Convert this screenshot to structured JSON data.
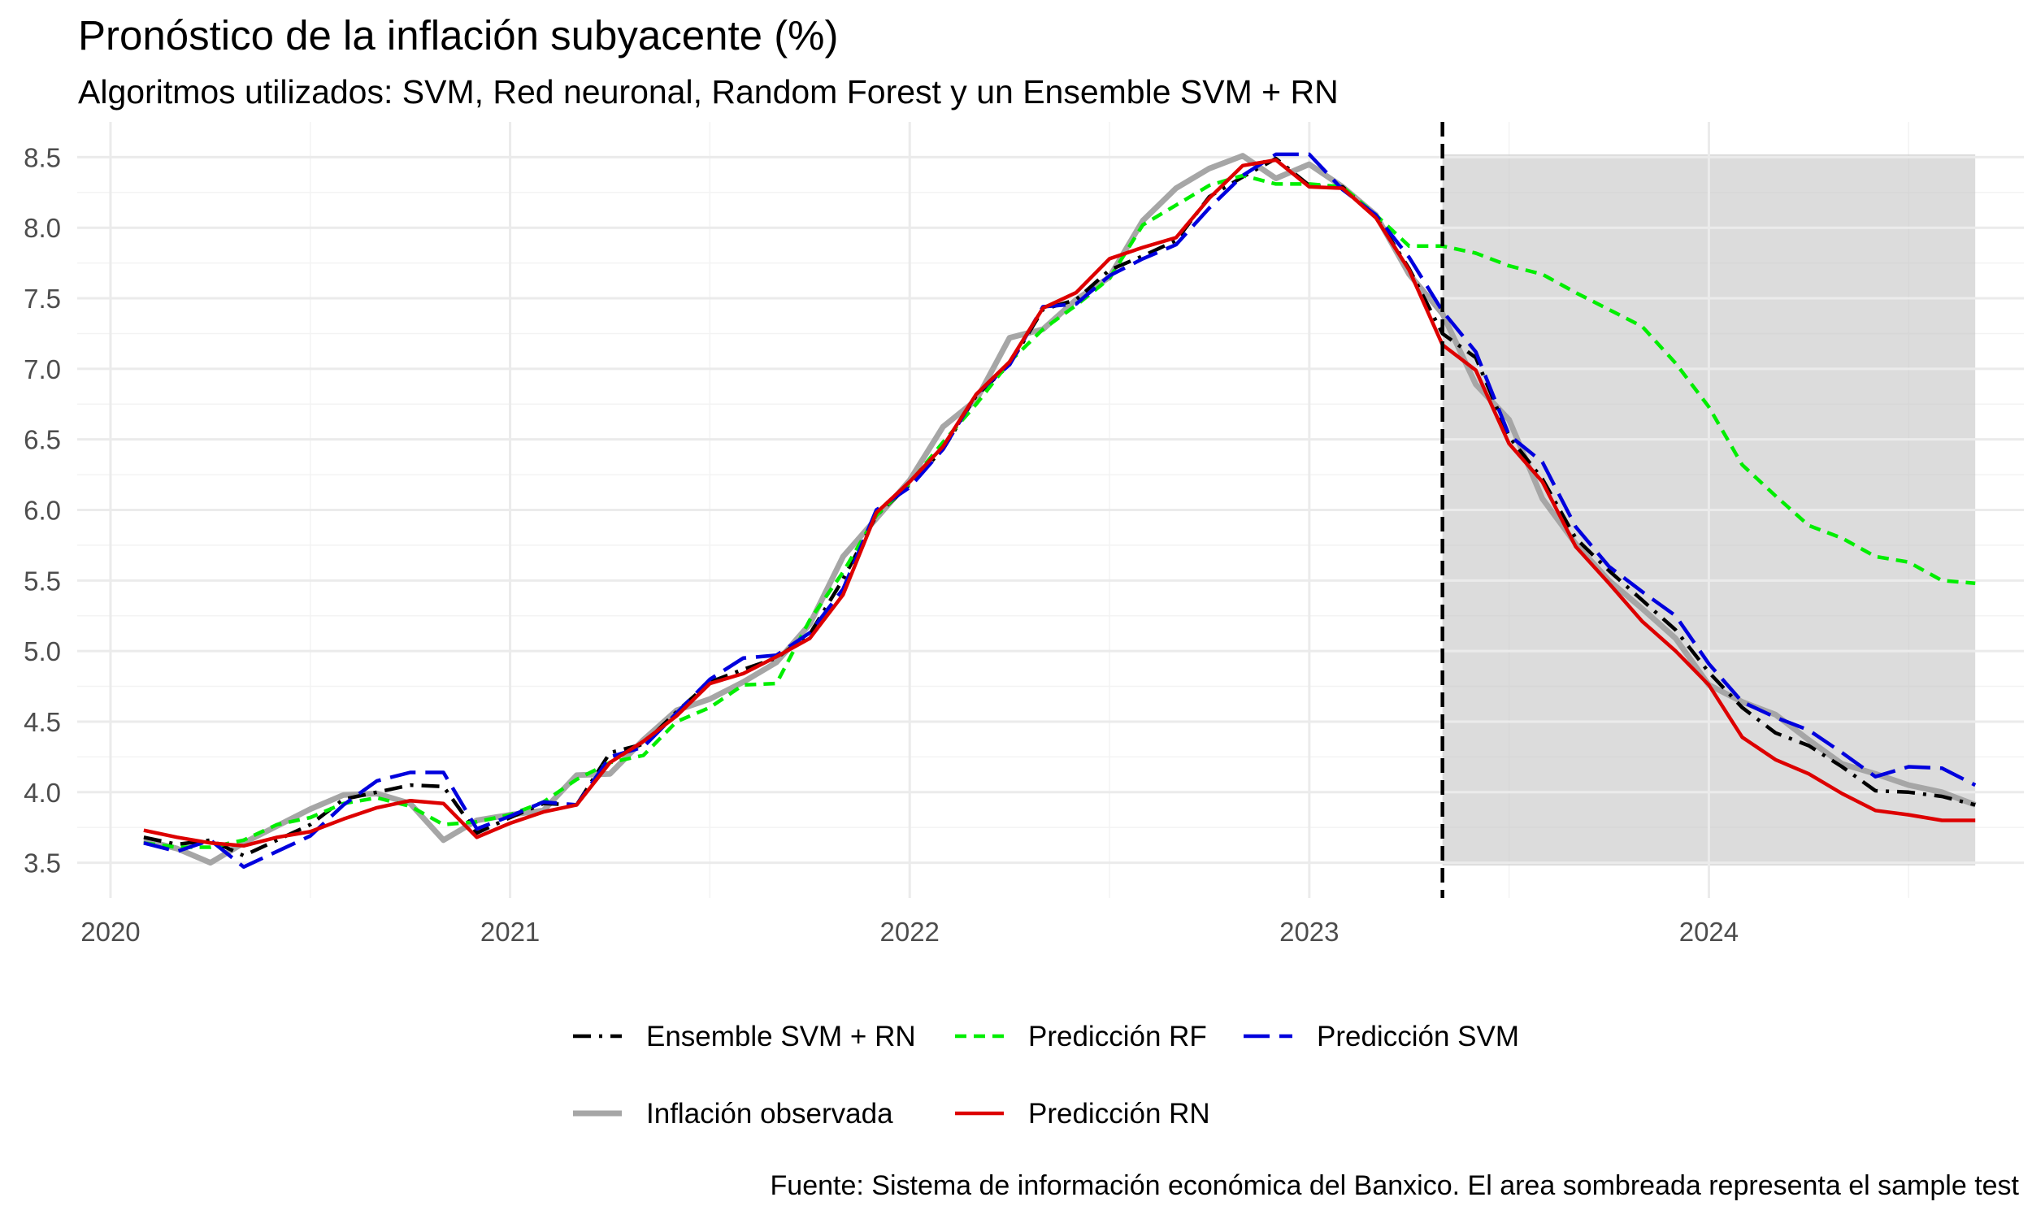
{
  "chart_data": {
    "type": "line",
    "title": "Pronóstico de la inflación subyacente (%)",
    "subtitle": "Algoritmos utilizados: SVM, Red neuronal, Random Forest y un Ensemble SVM + RN",
    "caption": "Fuente: Sistema de información económica del Banxico. El area sombreada representa el sample test",
    "xlabel": "",
    "ylabel": "",
    "x_ticks": [
      "2020",
      "2021",
      "2022",
      "2023",
      "2024"
    ],
    "y_ticks": [
      "3.5",
      "4.0",
      "4.5",
      "5.0",
      "5.5",
      "6.0",
      "6.5",
      "7.0",
      "7.5",
      "8.0",
      "8.5"
    ],
    "xlim": [
      "2019-12-01",
      "2024-10-15"
    ],
    "ylim": [
      3.25,
      8.75
    ],
    "grid": true,
    "legend_position": "bottom",
    "test_period": {
      "start": "2023-05",
      "end": "2024-09",
      "ymin": 3.48,
      "ymax": 8.52
    },
    "cutoff": "2023-05",
    "x": [
      "2020-02",
      "2020-03",
      "2020-04",
      "2020-05",
      "2020-06",
      "2020-07",
      "2020-08",
      "2020-09",
      "2020-10",
      "2020-11",
      "2020-12",
      "2021-01",
      "2021-02",
      "2021-03",
      "2021-04",
      "2021-05",
      "2021-06",
      "2021-07",
      "2021-08",
      "2021-09",
      "2021-10",
      "2021-11",
      "2021-12",
      "2022-01",
      "2022-02",
      "2022-03",
      "2022-04",
      "2022-05",
      "2022-06",
      "2022-07",
      "2022-08",
      "2022-09",
      "2022-10",
      "2022-11",
      "2022-12",
      "2023-01",
      "2023-02",
      "2023-03",
      "2023-04",
      "2023-05",
      "2023-06",
      "2023-07",
      "2023-08",
      "2023-09",
      "2023-10",
      "2023-11",
      "2023-12",
      "2024-01",
      "2024-02",
      "2024-03",
      "2024-04",
      "2024-05",
      "2024-06",
      "2024-07",
      "2024-08",
      "2024-09"
    ],
    "series": [
      {
        "name": "Inflación observada",
        "color": "#a6a6a6",
        "dash": "solid",
        "values": [
          3.66,
          3.6,
          3.5,
          3.64,
          3.76,
          3.88,
          3.98,
          3.99,
          3.92,
          3.66,
          3.8,
          3.84,
          3.87,
          4.12,
          4.13,
          4.37,
          4.58,
          4.66,
          4.78,
          4.92,
          5.19,
          5.67,
          5.94,
          6.21,
          6.59,
          6.78,
          7.22,
          7.28,
          7.49,
          7.65,
          8.05,
          8.28,
          8.42,
          8.51,
          8.35,
          8.45,
          8.29,
          8.09,
          7.67,
          7.39,
          6.89,
          6.64,
          6.08,
          5.76,
          5.5,
          5.3,
          5.09,
          4.76,
          4.64,
          4.55,
          4.37,
          4.2,
          4.13,
          4.05,
          4.0,
          3.91
        ]
      },
      {
        "name": "Ensemble SVM + RN",
        "color": "#000000",
        "dash": "dashdot",
        "values": [
          3.68,
          3.63,
          3.66,
          3.55,
          3.66,
          3.77,
          3.95,
          4.0,
          4.05,
          4.04,
          3.71,
          3.82,
          3.92,
          3.91,
          4.28,
          4.34,
          4.57,
          4.78,
          4.87,
          4.95,
          5.12,
          5.51,
          5.96,
          6.18,
          6.43,
          6.81,
          7.03,
          7.42,
          7.49,
          7.7,
          7.8,
          7.91,
          8.22,
          8.36,
          8.49,
          8.3,
          8.29,
          8.08,
          7.71,
          7.25,
          7.08,
          6.52,
          6.22,
          5.8,
          5.57,
          5.36,
          5.15,
          4.85,
          4.6,
          4.42,
          4.33,
          4.18,
          4.01,
          4.0,
          3.97,
          3.91
        ]
      },
      {
        "name": "Predicción RF",
        "color": "#00ee00",
        "dash": "dashed",
        "values": [
          3.64,
          3.61,
          3.61,
          3.66,
          3.77,
          3.82,
          3.92,
          3.96,
          3.9,
          3.77,
          3.79,
          3.84,
          3.93,
          4.09,
          4.21,
          4.26,
          4.5,
          4.6,
          4.76,
          4.77,
          5.22,
          5.56,
          5.96,
          6.19,
          6.48,
          6.75,
          7.05,
          7.28,
          7.45,
          7.64,
          8.02,
          8.16,
          8.3,
          8.37,
          8.31,
          8.31,
          8.29,
          8.09,
          7.87,
          7.87,
          7.82,
          7.73,
          7.67,
          7.54,
          7.42,
          7.3,
          7.04,
          6.73,
          6.32,
          6.1,
          5.89,
          5.8,
          5.67,
          5.63,
          5.5,
          5.48
        ]
      },
      {
        "name": "Predicción SVM",
        "color": "#0000dd",
        "dash": "longdash",
        "values": [
          3.64,
          3.58,
          3.66,
          3.47,
          3.58,
          3.69,
          3.91,
          4.08,
          4.14,
          4.14,
          3.74,
          3.83,
          3.93,
          3.91,
          4.25,
          4.32,
          4.56,
          4.8,
          4.95,
          4.97,
          5.13,
          5.44,
          6.0,
          6.16,
          6.43,
          6.82,
          7.03,
          7.44,
          7.46,
          7.66,
          7.78,
          7.88,
          8.14,
          8.37,
          8.52,
          8.52,
          8.27,
          8.09,
          7.79,
          7.41,
          7.12,
          6.53,
          6.34,
          5.88,
          5.6,
          5.42,
          5.25,
          4.91,
          4.64,
          4.53,
          4.44,
          4.28,
          4.11,
          4.18,
          4.17,
          4.05
        ]
      },
      {
        "name": "Predicción RN",
        "color": "#dd0000",
        "dash": "solid",
        "values": [
          3.73,
          3.68,
          3.64,
          3.62,
          3.68,
          3.72,
          3.81,
          3.89,
          3.94,
          3.92,
          3.68,
          3.78,
          3.86,
          3.91,
          4.21,
          4.36,
          4.54,
          4.77,
          4.84,
          4.96,
          5.09,
          5.4,
          5.98,
          6.2,
          6.45,
          6.82,
          7.05,
          7.43,
          7.54,
          7.78,
          7.86,
          7.93,
          8.21,
          8.44,
          8.48,
          8.29,
          8.28,
          8.07,
          7.7,
          7.17,
          6.99,
          6.47,
          6.2,
          5.74,
          5.48,
          5.21,
          5.0,
          4.76,
          4.39,
          4.23,
          4.13,
          3.99,
          3.87,
          3.84,
          3.8,
          3.8
        ]
      }
    ],
    "legend": [
      {
        "label": "Ensemble SVM + RN",
        "series": 1
      },
      {
        "label": "Predicción RF",
        "series": 2
      },
      {
        "label": "Predicción SVM",
        "series": 3
      },
      {
        "label": "Inflación observada",
        "series": 0
      },
      {
        "label": "Predicción RN",
        "series": 4
      }
    ]
  }
}
